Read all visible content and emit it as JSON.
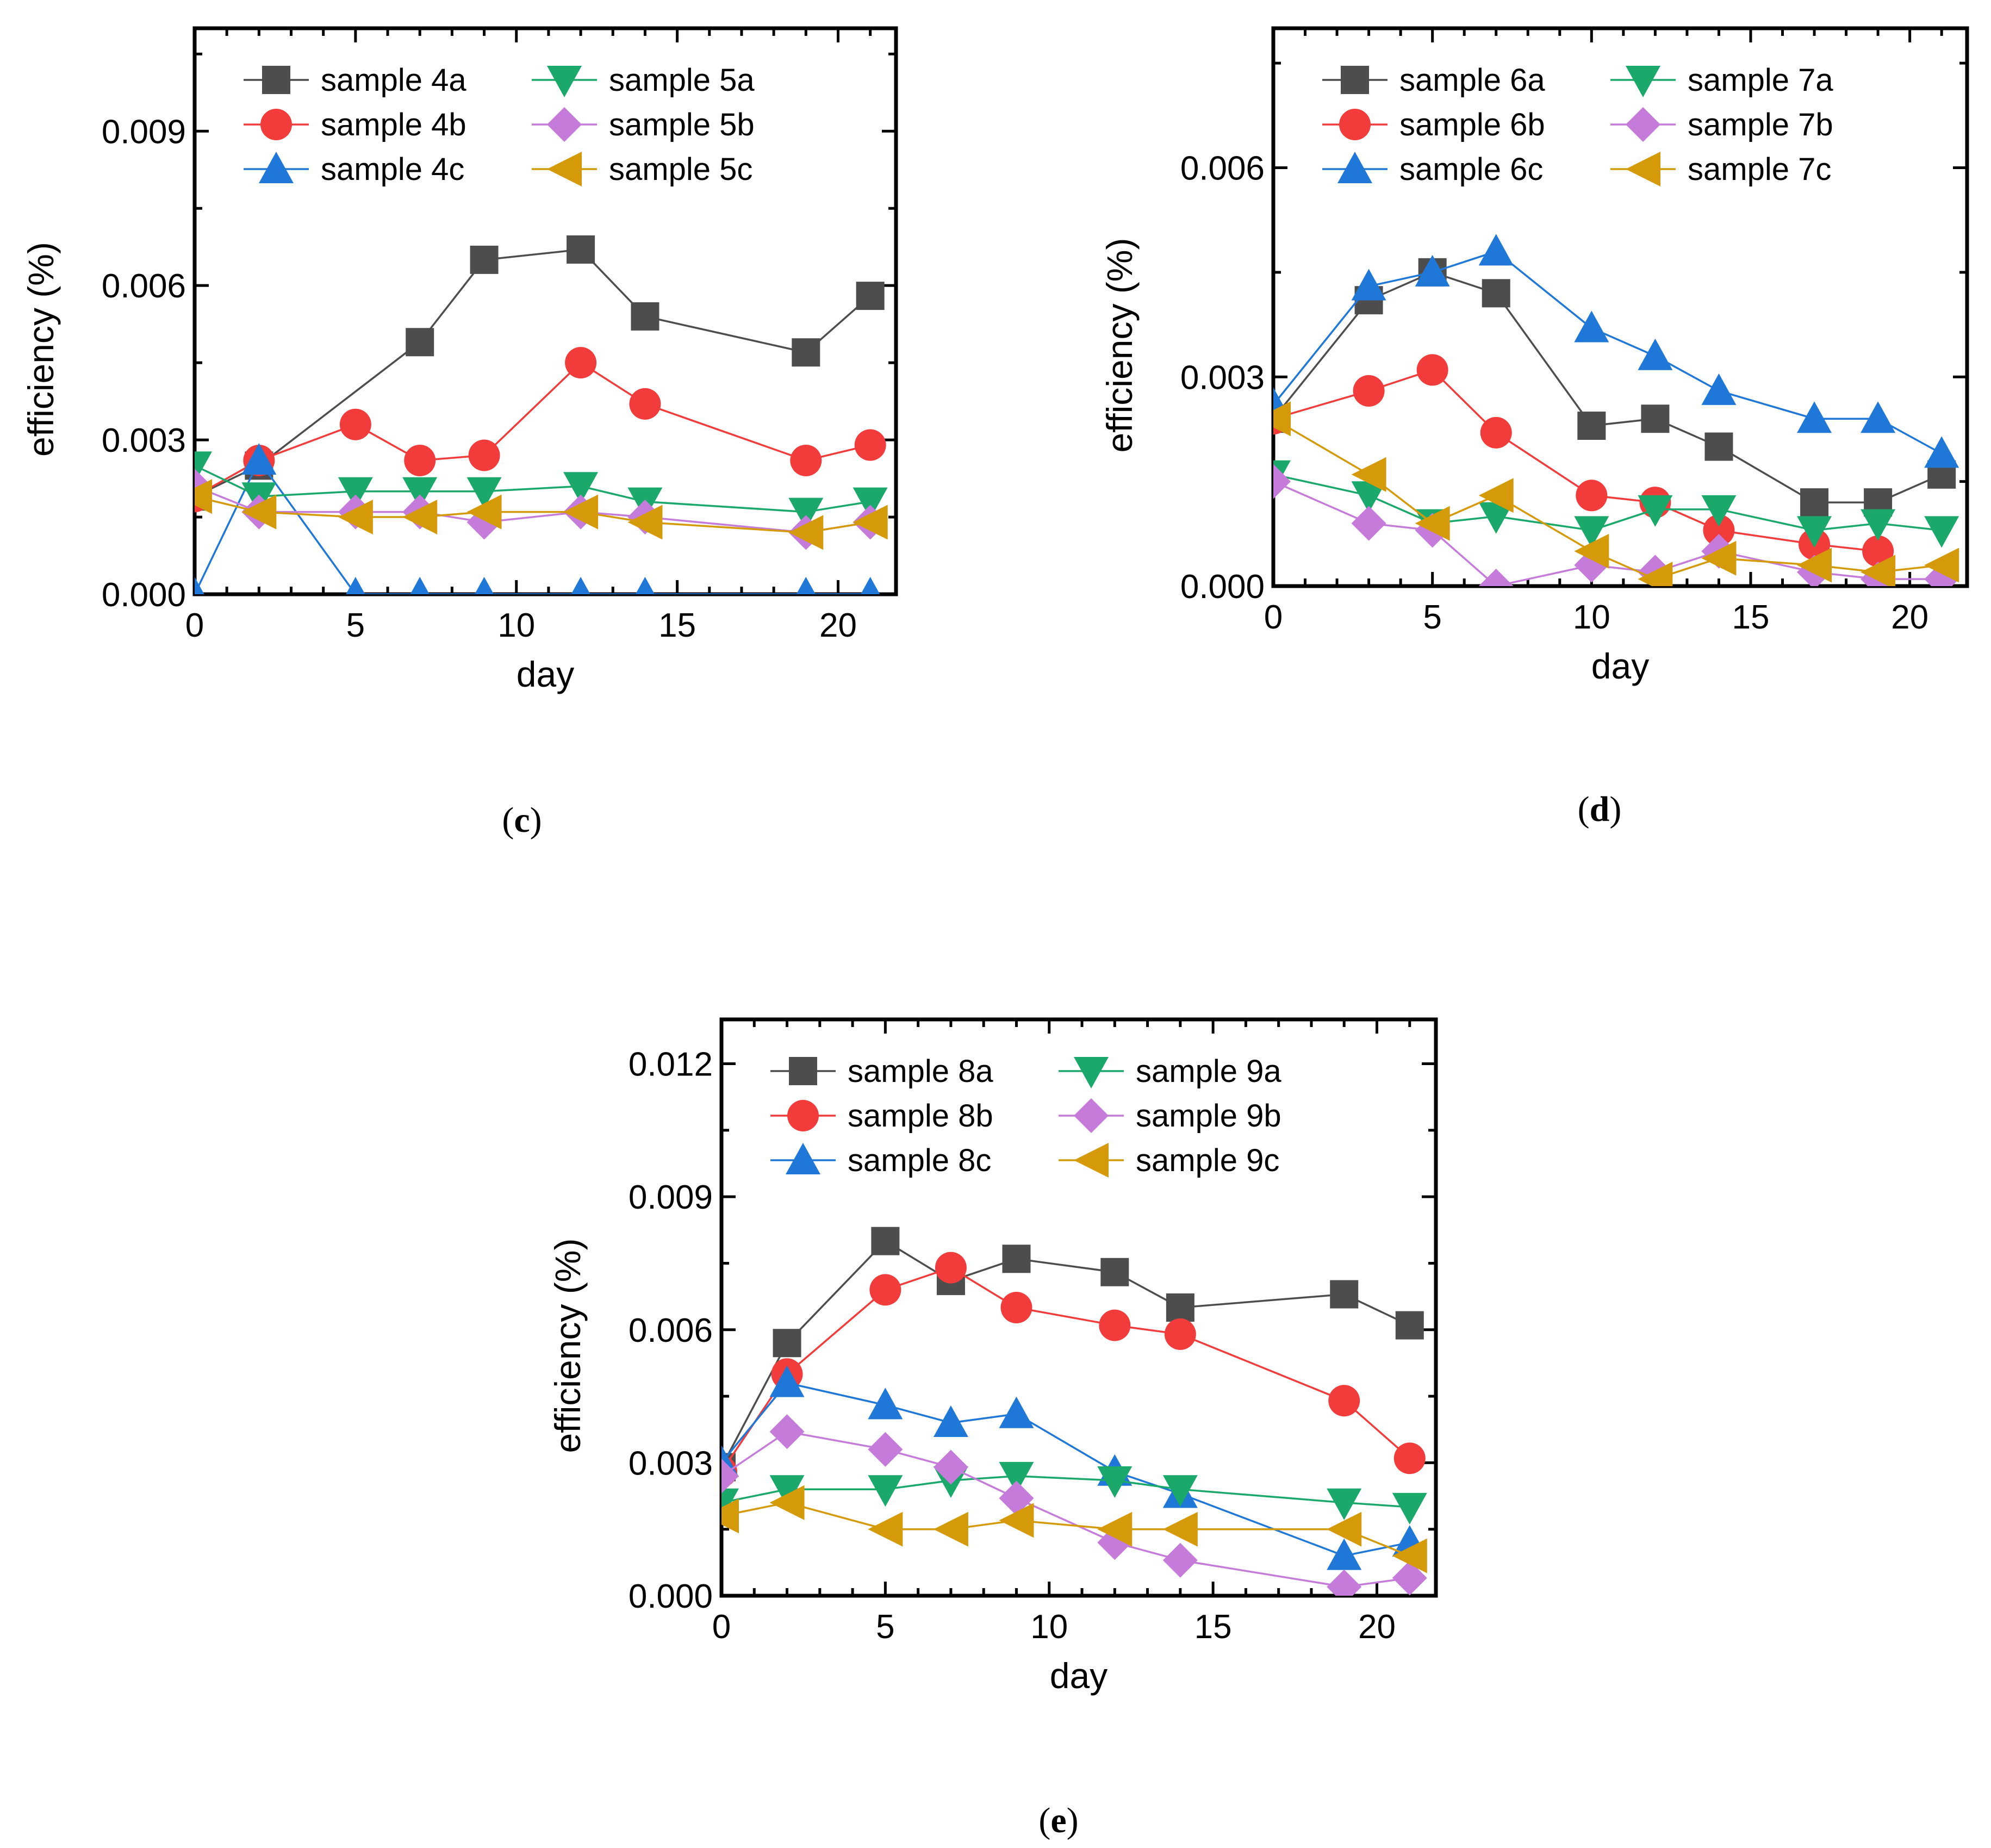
{
  "colors": {
    "a": "#4d4d4d",
    "b": "#f23b3b",
    "c": "#1f78d8",
    "d": "#1aa86b",
    "e": "#c57bd9",
    "f": "#d49a0a"
  },
  "chart_data": [
    {
      "id": "c",
      "type": "line",
      "caption_open": "(",
      "caption_letter": "c",
      "caption_close": ")",
      "xlabel": "day",
      "ylabel": "efficiency (%)",
      "xlim": [
        0,
        21.8
      ],
      "ylim": [
        0,
        0.011
      ],
      "xticks": [
        "0",
        "5",
        "10",
        "15",
        "20"
      ],
      "xtick_values": [
        0,
        5,
        10,
        15,
        20
      ],
      "yticks": [
        "0.000",
        "0.003",
        "0.006",
        "0.009"
      ],
      "ytick_values": [
        0,
        0.003,
        0.006,
        0.009
      ],
      "legend_position": "top",
      "series": [
        {
          "name": "sample 4a",
          "color": "a",
          "marker": "square",
          "x": [
            0,
            2,
            7,
            9,
            12,
            14,
            19,
            21
          ],
          "y": [
            0.0019,
            0.0025,
            0.0049,
            0.0065,
            0.0067,
            0.0054,
            0.0047,
            0.0058
          ]
        },
        {
          "name": "sample 4b",
          "color": "b",
          "marker": "circle",
          "x": [
            0,
            2,
            5,
            7,
            9,
            12,
            14,
            19,
            21
          ],
          "y": [
            0.0019,
            0.0026,
            0.0033,
            0.0026,
            0.0027,
            0.0045,
            0.0037,
            0.0026,
            0.0029
          ]
        },
        {
          "name": "sample 4c",
          "color": "c",
          "marker": "triangle-up",
          "x": [
            0,
            2,
            5,
            7,
            9,
            12,
            14,
            19,
            21
          ],
          "y": [
            0.0,
            0.0026,
            0.0,
            0.0,
            0.0,
            0.0,
            0.0,
            0.0,
            0.0
          ]
        },
        {
          "name": "sample 5a",
          "color": "d",
          "marker": "triangle-down",
          "x": [
            0,
            2,
            5,
            7,
            9,
            12,
            14,
            19,
            21
          ],
          "y": [
            0.0025,
            0.0019,
            0.002,
            0.002,
            0.002,
            0.0021,
            0.0018,
            0.0016,
            0.0018
          ]
        },
        {
          "name": "sample 5b",
          "color": "e",
          "marker": "diamond",
          "x": [
            0,
            2,
            5,
            7,
            9,
            12,
            14,
            19,
            21
          ],
          "y": [
            0.0021,
            0.0016,
            0.0016,
            0.0016,
            0.0014,
            0.0016,
            0.0015,
            0.0012,
            0.0014
          ]
        },
        {
          "name": "sample 5c",
          "color": "f",
          "marker": "triangle-left",
          "x": [
            0,
            2,
            5,
            7,
            9,
            12,
            14,
            19,
            21
          ],
          "y": [
            0.0019,
            0.0016,
            0.0015,
            0.0015,
            0.0016,
            0.0016,
            0.0014,
            0.0012,
            0.0014
          ]
        }
      ]
    },
    {
      "id": "d",
      "type": "line",
      "caption_open": "(",
      "caption_letter": "d",
      "caption_close": ")",
      "xlabel": "day",
      "ylabel": "efficiency (%)",
      "xlim": [
        0,
        21.8
      ],
      "ylim": [
        0,
        0.008
      ],
      "xticks": [
        "0",
        "5",
        "10",
        "15",
        "20"
      ],
      "xtick_values": [
        0,
        5,
        10,
        15,
        20
      ],
      "yticks": [
        "0.000",
        "0.003",
        "0.006"
      ],
      "ytick_values": [
        0,
        0.003,
        0.006
      ],
      "legend_position": "top",
      "series": [
        {
          "name": "sample 6a",
          "color": "a",
          "marker": "square",
          "x": [
            0,
            3,
            5,
            7,
            10,
            12,
            14,
            17,
            19,
            21
          ],
          "y": [
            0.0024,
            0.0041,
            0.0045,
            0.0042,
            0.0023,
            0.0024,
            0.002,
            0.0012,
            0.0012,
            0.0016
          ]
        },
        {
          "name": "sample 6b",
          "color": "b",
          "marker": "circle",
          "x": [
            0,
            3,
            5,
            7,
            10,
            12,
            14,
            17,
            19
          ],
          "y": [
            0.0024,
            0.0028,
            0.0031,
            0.0022,
            0.0013,
            0.0012,
            0.0008,
            0.0006,
            0.0005
          ]
        },
        {
          "name": "sample 6c",
          "color": "c",
          "marker": "triangle-up",
          "x": [
            0,
            3,
            5,
            7,
            10,
            12,
            14,
            17,
            19,
            21
          ],
          "y": [
            0.0026,
            0.0043,
            0.0045,
            0.0048,
            0.0037,
            0.0033,
            0.0028,
            0.0024,
            0.0024,
            0.0019
          ]
        },
        {
          "name": "sample 7a",
          "color": "d",
          "marker": "triangle-down",
          "x": [
            0,
            3,
            5,
            7,
            10,
            12,
            14,
            17,
            19,
            21
          ],
          "y": [
            0.0016,
            0.0013,
            0.0009,
            0.001,
            0.0008,
            0.0011,
            0.0011,
            0.0008,
            0.0009,
            0.0008
          ]
        },
        {
          "name": "sample 7b",
          "color": "e",
          "marker": "diamond",
          "x": [
            0,
            3,
            5,
            7,
            10,
            12,
            14,
            17,
            19,
            21
          ],
          "y": [
            0.0015,
            0.0009,
            0.0008,
            0.0,
            0.0003,
            0.0002,
            0.0005,
            0.0002,
            0.0001,
            0.0001
          ]
        },
        {
          "name": "sample 7c",
          "color": "f",
          "marker": "triangle-left",
          "x": [
            0,
            3,
            5,
            7,
            10,
            12,
            14,
            17,
            19,
            21
          ],
          "y": [
            0.0024,
            0.0016,
            0.0009,
            0.0013,
            0.0005,
            0.0001,
            0.0004,
            0.0003,
            0.0002,
            0.0003
          ]
        }
      ]
    },
    {
      "id": "e",
      "type": "line",
      "caption_open": "(",
      "caption_letter": "e",
      "caption_close": ")",
      "xlabel": "day",
      "ylabel": "efficiency (%)",
      "xlim": [
        0,
        21.8
      ],
      "ylim": [
        0,
        0.013
      ],
      "xticks": [
        "0",
        "5",
        "10",
        "15",
        "20"
      ],
      "xtick_values": [
        0,
        5,
        10,
        15,
        20
      ],
      "yticks": [
        "0.000",
        "0.003",
        "0.006",
        "0.009",
        "0.012"
      ],
      "ytick_values": [
        0,
        0.003,
        0.006,
        0.009,
        0.012
      ],
      "legend_position": "top",
      "series": [
        {
          "name": "sample 8a",
          "color": "a",
          "marker": "square",
          "x": [
            0,
            2,
            5,
            7,
            9,
            12,
            14,
            19,
            21
          ],
          "y": [
            0.0029,
            0.0057,
            0.008,
            0.0071,
            0.0076,
            0.0073,
            0.0065,
            0.0068,
            0.0061
          ]
        },
        {
          "name": "sample 8b",
          "color": "b",
          "marker": "circle",
          "x": [
            0,
            2,
            5,
            7,
            9,
            12,
            14,
            19,
            21
          ],
          "y": [
            0.0028,
            0.005,
            0.0069,
            0.0074,
            0.0065,
            0.0061,
            0.0059,
            0.0044,
            0.0031
          ]
        },
        {
          "name": "sample 8c",
          "color": "c",
          "marker": "triangle-up",
          "x": [
            0,
            2,
            5,
            7,
            9,
            12,
            14,
            19,
            21
          ],
          "y": [
            0.003,
            0.0048,
            0.0043,
            0.0039,
            0.0041,
            0.0028,
            0.0023,
            0.0009,
            0.0012
          ]
        },
        {
          "name": "sample 9a",
          "color": "d",
          "marker": "triangle-down",
          "x": [
            0,
            2,
            5,
            7,
            9,
            12,
            14,
            19,
            21
          ],
          "y": [
            0.0021,
            0.0024,
            0.0024,
            0.0026,
            0.0027,
            0.0026,
            0.0024,
            0.0021,
            0.002
          ]
        },
        {
          "name": "sample 9b",
          "color": "e",
          "marker": "diamond",
          "x": [
            0,
            2,
            5,
            7,
            9,
            12,
            14,
            19,
            21
          ],
          "y": [
            0.0027,
            0.0037,
            0.0033,
            0.0029,
            0.0022,
            0.0012,
            0.0008,
            0.0002,
            0.0004
          ]
        },
        {
          "name": "sample 9c",
          "color": "f",
          "marker": "triangle-left",
          "x": [
            0,
            2,
            5,
            7,
            9,
            12,
            14,
            19,
            21
          ],
          "y": [
            0.0018,
            0.0021,
            0.0015,
            0.0015,
            0.0017,
            0.0015,
            0.0015,
            0.0015,
            0.0009
          ]
        }
      ]
    }
  ]
}
